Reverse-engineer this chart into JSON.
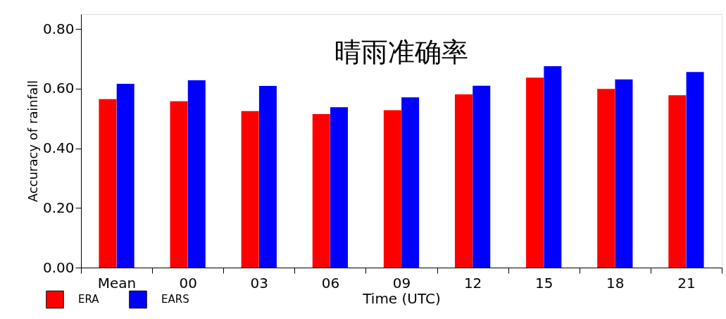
{
  "chart_data": {
    "type": "bar",
    "title": "晴雨准确率",
    "xlabel": "Time (UTC)",
    "ylabel": "Accuracy of rainfall",
    "categories": [
      "Mean",
      "00",
      "03",
      "06",
      "09",
      "12",
      "15",
      "18",
      "21"
    ],
    "series": [
      {
        "name": "ERA",
        "color": "#ff0000",
        "values": [
          0.565,
          0.558,
          0.525,
          0.515,
          0.528,
          0.581,
          0.637,
          0.599,
          0.578
        ]
      },
      {
        "name": "EARS",
        "color": "#0000ff",
        "values": [
          0.616,
          0.628,
          0.609,
          0.538,
          0.571,
          0.61,
          0.675,
          0.631,
          0.656
        ]
      }
    ],
    "ylim": [
      0,
      0.85
    ],
    "yticks": [
      {
        "value": 0,
        "label": "0.00"
      },
      {
        "value": 0.2,
        "label": "0.20"
      },
      {
        "value": 0.4,
        "label": "0.40"
      },
      {
        "value": 0.6,
        "label": "0.60"
      },
      {
        "value": 0.8,
        "label": "0.80"
      }
    ],
    "grid": false,
    "legend": "bottom left"
  }
}
